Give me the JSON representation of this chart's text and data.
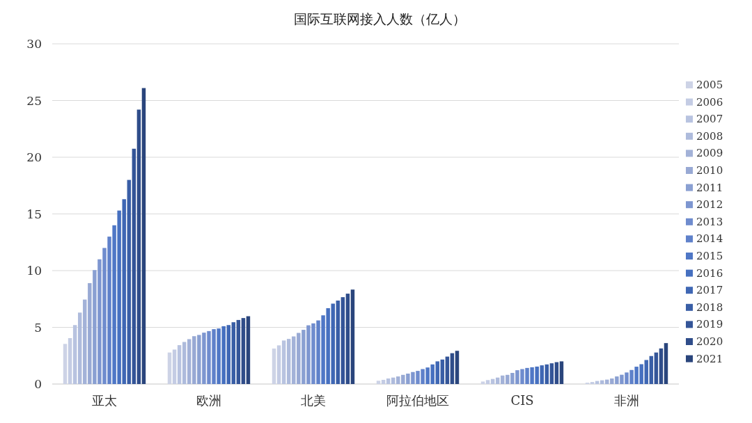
{
  "chart_data": {
    "type": "bar",
    "title": "国际互联网接入人数（亿人）",
    "categories": [
      "亚太",
      "欧洲",
      "北美",
      "阿拉伯地区",
      "CIS",
      "非洲"
    ],
    "ylim": [
      0,
      30
    ],
    "yticks": [
      0,
      5,
      10,
      15,
      20,
      25,
      30
    ],
    "grid": "y",
    "legend": "right",
    "series": [
      {
        "name": "2005",
        "color": "#cdd3e6",
        "values": [
          3.54,
          2.78,
          3.13,
          0.29,
          0.22,
          0.12
        ]
      },
      {
        "name": "2006",
        "color": "#c4cce4",
        "values": [
          4.05,
          3.04,
          3.41,
          0.37,
          0.35,
          0.18
        ]
      },
      {
        "name": "2007",
        "color": "#b8c3e0",
        "values": [
          5.2,
          3.43,
          3.84,
          0.49,
          0.45,
          0.27
        ]
      },
      {
        "name": "2008",
        "color": "#aebbdc",
        "values": [
          6.3,
          3.71,
          3.98,
          0.57,
          0.57,
          0.33
        ]
      },
      {
        "name": "2009",
        "color": "#a3b2d8",
        "values": [
          7.45,
          3.96,
          4.2,
          0.67,
          0.75,
          0.39
        ]
      },
      {
        "name": "2010",
        "color": "#98a9d4",
        "values": [
          8.9,
          4.22,
          4.51,
          0.81,
          0.81,
          0.49
        ]
      },
      {
        "name": "2011",
        "color": "#8aa0d2",
        "values": [
          10.05,
          4.33,
          4.78,
          0.92,
          0.98,
          0.67
        ]
      },
      {
        "name": "2012",
        "color": "#7d96d0",
        "values": [
          11.0,
          4.53,
          5.18,
          1.06,
          1.22,
          0.82
        ]
      },
      {
        "name": "2013",
        "color": "#6f8cce",
        "values": [
          12.0,
          4.67,
          5.35,
          1.16,
          1.32,
          1.02
        ]
      },
      {
        "name": "2014",
        "color": "#5f81ca",
        "values": [
          13.0,
          4.84,
          5.61,
          1.32,
          1.42,
          1.24
        ]
      },
      {
        "name": "2015",
        "color": "#4f77c6",
        "values": [
          14.0,
          4.9,
          6.06,
          1.46,
          1.48,
          1.53
        ]
      },
      {
        "name": "2016",
        "color": "#4670c0",
        "values": [
          15.3,
          5.1,
          6.69,
          1.73,
          1.54,
          1.75
        ]
      },
      {
        "name": "2017",
        "color": "#3f67b4",
        "values": [
          16.3,
          5.2,
          7.09,
          2.0,
          1.65,
          2.12
        ]
      },
      {
        "name": "2018",
        "color": "#395ea6",
        "values": [
          18.0,
          5.45,
          7.36,
          2.16,
          1.73,
          2.47
        ]
      },
      {
        "name": "2019",
        "color": "#345598",
        "values": [
          20.75,
          5.65,
          7.66,
          2.42,
          1.83,
          2.78
        ]
      },
      {
        "name": "2020",
        "color": "#2f4d8a",
        "values": [
          24.2,
          5.82,
          7.97,
          2.72,
          1.93,
          3.14
        ]
      },
      {
        "name": "2021",
        "color": "#2a457c",
        "values": [
          26.1,
          5.98,
          8.33,
          2.93,
          2.0,
          3.61
        ]
      }
    ]
  }
}
